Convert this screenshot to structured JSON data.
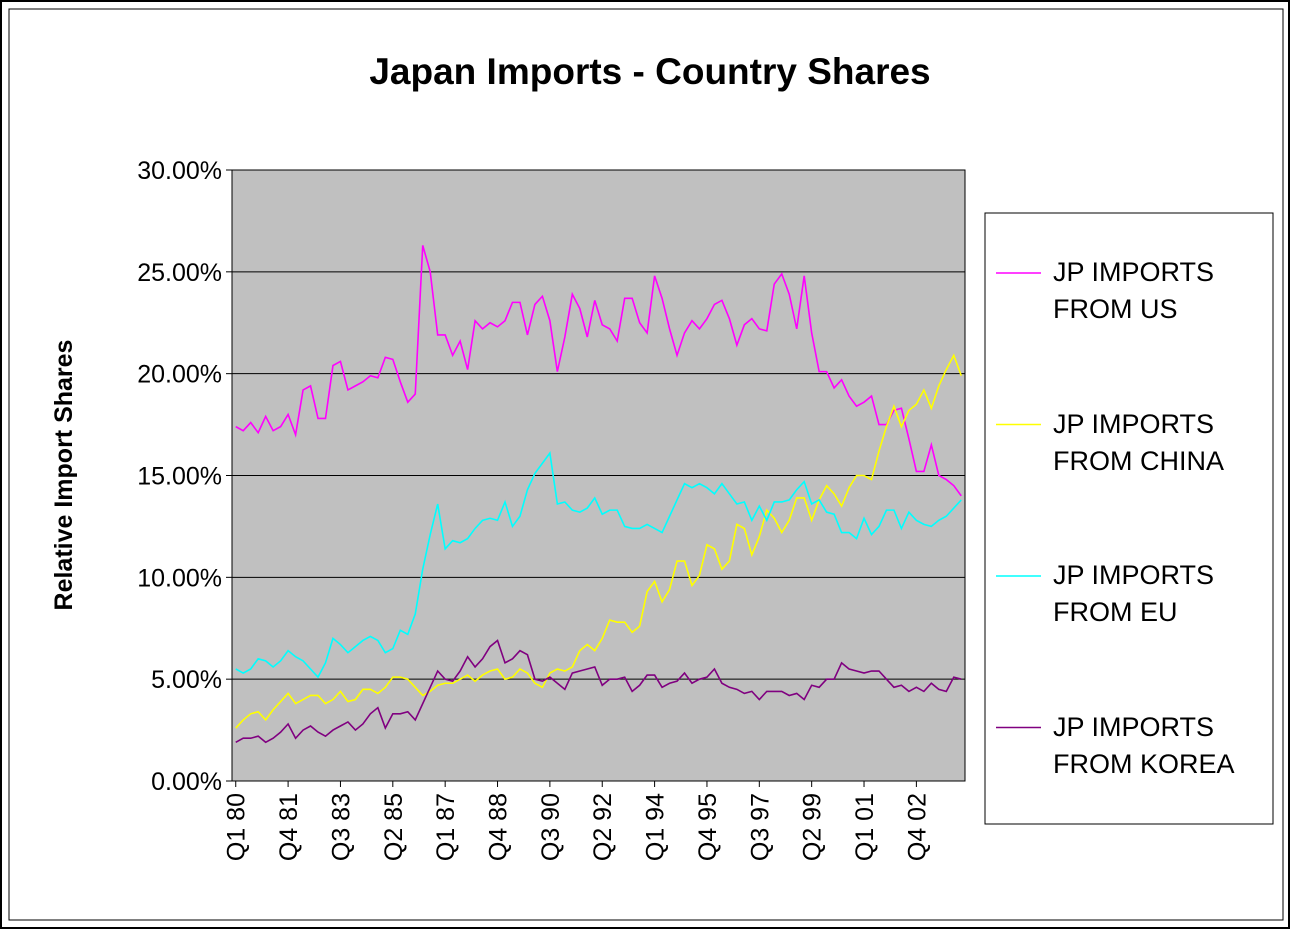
{
  "chart_data": {
    "type": "line",
    "title": "Japan Imports - Country Shares",
    "y_label": "Relative Import Shares",
    "categories": [
      "Q1 80",
      null,
      null,
      null,
      null,
      null,
      null,
      "Q4 81",
      null,
      null,
      null,
      null,
      null,
      null,
      "Q3 83",
      null,
      null,
      null,
      null,
      null,
      null,
      "Q2 85",
      null,
      null,
      null,
      null,
      null,
      null,
      "Q1 87",
      null,
      null,
      null,
      null,
      null,
      null,
      "Q4 88",
      null,
      null,
      null,
      null,
      null,
      null,
      "Q3 90",
      null,
      null,
      null,
      null,
      null,
      null,
      "Q2 92",
      null,
      null,
      null,
      null,
      null,
      null,
      "Q1 94",
      null,
      null,
      null,
      null,
      null,
      null,
      "Q4 95",
      null,
      null,
      null,
      null,
      null,
      null,
      "Q3 97",
      null,
      null,
      null,
      null,
      null,
      null,
      "Q2 99",
      null,
      null,
      null,
      null,
      null,
      null,
      "Q1 01",
      null,
      null,
      null,
      null,
      null,
      null,
      "Q4 02",
      null,
      null,
      null,
      null,
      null,
      null
    ],
    "series": [
      {
        "name": "JP IMPORTS FROM US",
        "color": "#ff00ff",
        "values": [
          17.4,
          17.2,
          17.6,
          17.1,
          17.9,
          17.2,
          17.4,
          18.0,
          17.0,
          19.2,
          19.4,
          17.8,
          17.8,
          20.4,
          20.6,
          19.2,
          19.4,
          19.6,
          19.9,
          19.8,
          20.8,
          20.7,
          19.6,
          18.6,
          19.0,
          26.3,
          25.0,
          21.9,
          21.9,
          20.9,
          21.6,
          20.2,
          22.6,
          22.2,
          22.5,
          22.3,
          22.6,
          23.5,
          23.5,
          21.9,
          23.4,
          23.8,
          22.6,
          20.1,
          21.8,
          23.9,
          23.2,
          21.8,
          23.6,
          22.4,
          22.2,
          21.6,
          23.7,
          23.7,
          22.5,
          22.0,
          24.8,
          23.7,
          22.2,
          20.9,
          22.0,
          22.6,
          22.2,
          22.7,
          23.4,
          23.6,
          22.7,
          21.4,
          22.4,
          22.7,
          22.2,
          22.1,
          24.4,
          24.9,
          23.9,
          22.2,
          24.8,
          22.0,
          20.1,
          20.1,
          19.3,
          19.7,
          18.9,
          18.4,
          18.6,
          18.9,
          17.5,
          17.5,
          18.2,
          18.3,
          16.8,
          15.2,
          15.2,
          16.5,
          15.0,
          14.8,
          14.5,
          14.0
        ]
      },
      {
        "name": "JP IMPORTS FROM CHINA",
        "color": "#ffff00",
        "values": [
          2.6,
          3.0,
          3.3,
          3.4,
          3.0,
          3.5,
          3.9,
          4.3,
          3.8,
          4.0,
          4.2,
          4.2,
          3.8,
          4.0,
          4.4,
          3.9,
          4.0,
          4.5,
          4.5,
          4.3,
          4.6,
          5.1,
          5.1,
          5.0,
          4.6,
          4.2,
          4.4,
          4.7,
          4.8,
          4.8,
          5.0,
          5.2,
          4.9,
          5.2,
          5.4,
          5.5,
          5.0,
          5.1,
          5.5,
          5.3,
          4.8,
          4.6,
          5.3,
          5.5,
          5.4,
          5.6,
          6.4,
          6.7,
          6.4,
          7.0,
          7.9,
          7.8,
          7.8,
          7.3,
          7.6,
          9.3,
          9.8,
          8.8,
          9.4,
          10.8,
          10.8,
          9.6,
          10.1,
          11.6,
          11.4,
          10.4,
          10.8,
          12.6,
          12.4,
          11.1,
          12.0,
          13.3,
          12.9,
          12.2,
          12.8,
          13.9,
          13.9,
          12.8,
          13.8,
          14.5,
          14.1,
          13.5,
          14.4,
          15.0,
          15.0,
          14.8,
          16.2,
          17.4,
          18.4,
          17.4,
          18.2,
          18.5,
          19.2,
          18.3,
          19.4,
          20.2,
          20.9,
          19.9
        ]
      },
      {
        "name": "JP IMPORTS FROM EU",
        "color": "#00ffff",
        "values": [
          5.5,
          5.3,
          5.5,
          6.0,
          5.9,
          5.6,
          5.9,
          6.4,
          6.1,
          5.9,
          5.5,
          5.1,
          5.8,
          7.0,
          6.7,
          6.3,
          6.6,
          6.9,
          7.1,
          6.9,
          6.3,
          6.5,
          7.4,
          7.2,
          8.2,
          10.4,
          12.1,
          13.6,
          11.4,
          11.8,
          11.7,
          11.9,
          12.4,
          12.8,
          12.9,
          12.8,
          13.7,
          12.5,
          13.0,
          14.3,
          15.1,
          15.6,
          16.1,
          13.6,
          13.7,
          13.3,
          13.2,
          13.4,
          13.9,
          13.1,
          13.3,
          13.3,
          12.5,
          12.4,
          12.4,
          12.6,
          12.4,
          12.2,
          13.0,
          13.8,
          14.6,
          14.4,
          14.6,
          14.4,
          14.1,
          14.6,
          14.1,
          13.6,
          13.7,
          12.8,
          13.5,
          12.8,
          13.7,
          13.7,
          13.8,
          14.3,
          14.7,
          13.6,
          13.8,
          13.2,
          13.1,
          12.2,
          12.2,
          11.9,
          12.9,
          12.1,
          12.5,
          13.3,
          13.3,
          12.4,
          13.2,
          12.8,
          12.6,
          12.5,
          12.8,
          13.0,
          13.4,
          13.8
        ]
      },
      {
        "name": "JP IMPORTS FROM KOREA",
        "color": "#800080",
        "values": [
          1.9,
          2.1,
          2.1,
          2.2,
          1.9,
          2.1,
          2.4,
          2.8,
          2.1,
          2.5,
          2.7,
          2.4,
          2.2,
          2.5,
          2.7,
          2.9,
          2.5,
          2.8,
          3.3,
          3.6,
          2.6,
          3.3,
          3.3,
          3.4,
          3.0,
          3.8,
          4.6,
          5.4,
          5.0,
          4.9,
          5.4,
          6.1,
          5.6,
          6.0,
          6.6,
          6.9,
          5.8,
          6.0,
          6.4,
          6.2,
          5.0,
          4.9,
          5.1,
          4.8,
          4.5,
          5.3,
          5.4,
          5.5,
          5.6,
          4.7,
          5.0,
          5.0,
          5.1,
          4.4,
          4.7,
          5.2,
          5.2,
          4.6,
          4.8,
          4.9,
          5.3,
          4.8,
          5.0,
          5.1,
          5.5,
          4.8,
          4.6,
          4.5,
          4.3,
          4.4,
          4.0,
          4.4,
          4.4,
          4.4,
          4.2,
          4.3,
          4.0,
          4.7,
          4.6,
          5.0,
          5.0,
          5.8,
          5.5,
          5.4,
          5.3,
          5.4,
          5.4,
          5.0,
          4.6,
          4.7,
          4.4,
          4.6,
          4.4,
          4.8,
          4.5,
          4.4,
          5.1,
          5.0
        ]
      }
    ],
    "ylim": [
      0,
      30
    ],
    "yticks": [
      {
        "value": 0,
        "label": "0.00%"
      },
      {
        "value": 5,
        "label": "5.00%"
      },
      {
        "value": 10,
        "label": "10.00%"
      },
      {
        "value": 15,
        "label": "15.00%"
      },
      {
        "value": 20,
        "label": "20.00%"
      },
      {
        "value": 25,
        "label": "25.00%"
      },
      {
        "value": 30,
        "label": "30.00%"
      }
    ],
    "grid": true,
    "plot_background": "#c0c0c0",
    "legend": "right"
  }
}
